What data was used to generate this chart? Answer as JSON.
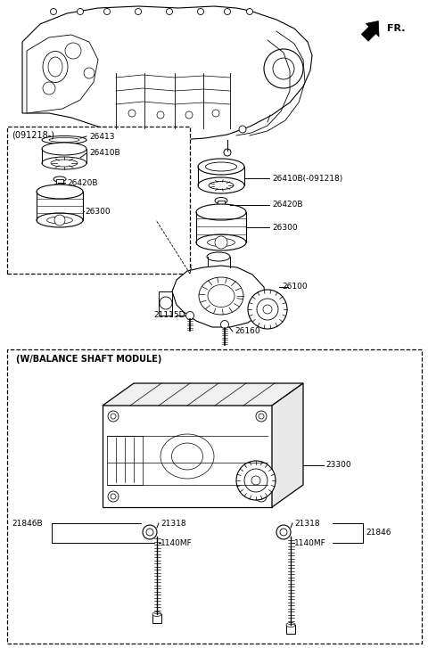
{
  "bg_color": "#ffffff",
  "line_color": "#000000",
  "fig_width": 4.8,
  "fig_height": 7.27,
  "dpi": 100,
  "fr_label": "FR.",
  "top_box_label": "(091218-)",
  "bottom_box_label": "(W/BALANCE SHAFT MODULE)",
  "parts": {
    "26410B_old": "26410B(-091218)",
    "26410B": "26410B",
    "26413": "26413",
    "26420B_left": "26420B",
    "26420B_right": "26420B",
    "26300_left": "26300",
    "26300_right": "26300",
    "26100": "26100",
    "26160": "26160",
    "21115D": "21115D",
    "23300": "23300",
    "21318_left": "21318",
    "21318_right": "21318",
    "1140MF_left": "1140MF",
    "1140MF_right": "1140MF",
    "21846B": "21846B",
    "21846": "21846"
  },
  "font_size_label": 6.5,
  "font_size_box": 7.0
}
